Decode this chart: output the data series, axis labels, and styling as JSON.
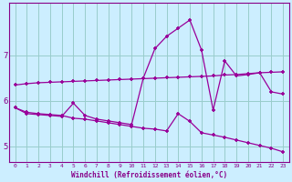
{
  "xlabel": "Windchill (Refroidissement éolien,°C)",
  "background_color": "#cceeff",
  "line_color": "#990099",
  "grid_color": "#99cccc",
  "x": [
    0,
    1,
    2,
    3,
    4,
    5,
    6,
    7,
    8,
    9,
    10,
    11,
    12,
    13,
    14,
    15,
    16,
    17,
    18,
    19,
    20,
    21,
    22,
    23
  ],
  "line_top": [
    5.85,
    5.72,
    5.7,
    5.68,
    5.66,
    5.95,
    5.68,
    5.6,
    5.56,
    5.52,
    5.48,
    6.5,
    7.15,
    7.42,
    7.6,
    7.78,
    7.12,
    5.8,
    6.88,
    6.55,
    6.58,
    6.62,
    6.2,
    6.15
  ],
  "line_mid": [
    6.35,
    6.38,
    6.4,
    6.41,
    6.42,
    6.43,
    6.44,
    6.45,
    6.46,
    6.47,
    6.48,
    6.49,
    6.5,
    6.51,
    6.52,
    6.53,
    6.54,
    6.55,
    6.57,
    6.58,
    6.6,
    6.62,
    6.63,
    6.64
  ],
  "line_bot": [
    5.85,
    5.75,
    5.72,
    5.7,
    5.68,
    5.62,
    5.6,
    5.56,
    5.52,
    5.48,
    5.44,
    5.4,
    5.38,
    5.34,
    5.72,
    5.55,
    5.3,
    5.25,
    5.2,
    5.14,
    5.08,
    5.02,
    4.96,
    4.88
  ],
  "yticks": [
    5,
    6,
    7
  ],
  "ylim": [
    4.65,
    8.15
  ],
  "xlim": [
    -0.5,
    23.5
  ]
}
